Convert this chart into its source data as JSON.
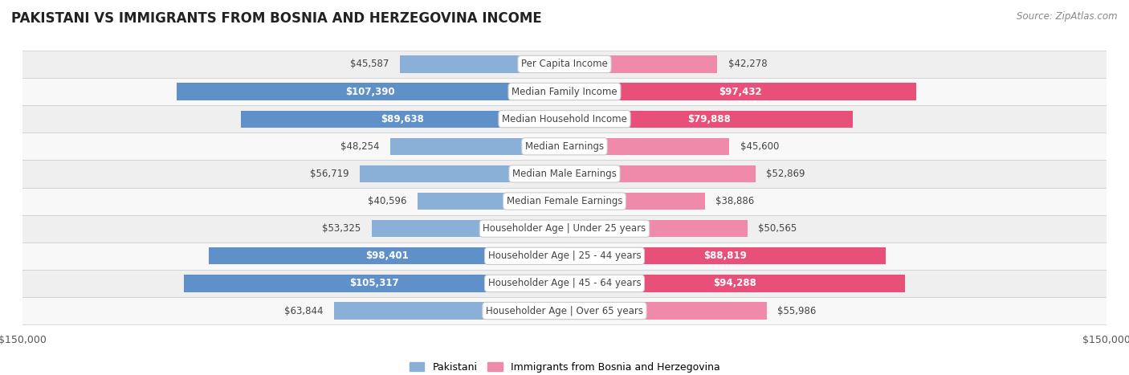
{
  "title": "PAKISTANI VS IMMIGRANTS FROM BOSNIA AND HERZEGOVINA INCOME",
  "source": "Source: ZipAtlas.com",
  "categories": [
    "Per Capita Income",
    "Median Family Income",
    "Median Household Income",
    "Median Earnings",
    "Median Male Earnings",
    "Median Female Earnings",
    "Householder Age | Under 25 years",
    "Householder Age | 25 - 44 years",
    "Householder Age | 45 - 64 years",
    "Householder Age | Over 65 years"
  ],
  "pakistani_values": [
    45587,
    107390,
    89638,
    48254,
    56719,
    40596,
    53325,
    98401,
    105317,
    63844
  ],
  "bosnia_values": [
    42278,
    97432,
    79888,
    45600,
    52869,
    38886,
    50565,
    88819,
    94288,
    55986
  ],
  "pakistani_labels": [
    "$45,587",
    "$107,390",
    "$89,638",
    "$48,254",
    "$56,719",
    "$40,596",
    "$53,325",
    "$98,401",
    "$105,317",
    "$63,844"
  ],
  "bosnia_labels": [
    "$42,278",
    "$97,432",
    "$79,888",
    "$45,600",
    "$52,869",
    "$38,886",
    "$50,565",
    "$88,819",
    "$94,288",
    "$55,986"
  ],
  "pakistani_color": "#8ab0d8",
  "bosnia_color": "#f08aaa",
  "pakistani_color_strong": "#6090c8",
  "bosnia_color_strong": "#e8507a",
  "max_value": 150000,
  "label_fontsize": 8.5,
  "title_fontsize": 12,
  "bg_color": "#ffffff",
  "row_bg_even": "#efefef",
  "row_bg_odd": "#f8f8f8",
  "inside_label_threshold": 70000
}
